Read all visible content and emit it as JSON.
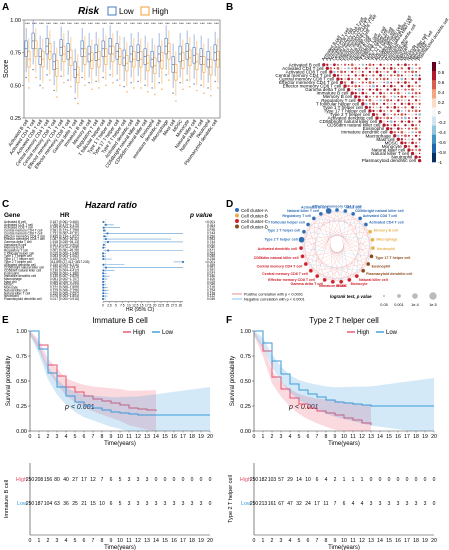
{
  "panel_letters": [
    "A",
    "B",
    "C",
    "D",
    "E",
    "F"
  ],
  "colors": {
    "low": "#4a78c6",
    "high": "#f0a23c",
    "km_high": "#e8506e",
    "km_low": "#3a9ad9",
    "pos": "#e57373",
    "neg": "#64b5f6"
  },
  "cells": [
    "Activated B cell",
    "Activated CD4 T cell",
    "Activated CD8 T cell",
    "Central memory CD4 T cell",
    "Central memory CD8 T cell",
    "Effector memeory CD4 T cell",
    "Effector memeory CD8 T cell",
    "Gamma delta T cell",
    "Immature B cell",
    "Memory B cell",
    "Regulatory T cell",
    "T follicular helper cell",
    "Type 1 T helper cell",
    "Type 17 T helper cell",
    "Type 2 T helper cell",
    "Activated dendritic cell",
    "CD56bright natural killer cell",
    "CD56dim natural killer cell",
    "Eosinophil",
    "Immature dendritic cell",
    "Macrophage",
    "Mast cell",
    "MDSC",
    "Monocyte",
    "Natural killer cell",
    "Natural killer T cell",
    "Neutrophil",
    "Plasmacytoid dendritic cell"
  ],
  "chart_data": [
    {
      "type": "box",
      "panel": "A",
      "title": "Risk",
      "legend": [
        "Low",
        "High"
      ],
      "ylabel": "Score",
      "ylim": [
        0.25,
        1.0
      ],
      "yticks": [
        "0.25",
        "0.50",
        "0.75",
        "1.00"
      ],
      "significance": [
        "***",
        "***",
        "***",
        "***",
        "***",
        "***",
        "***",
        "***",
        "***",
        "***",
        "***",
        "***",
        "***",
        "***",
        "**",
        "***",
        "***",
        "***",
        "***",
        "***",
        "***",
        "***",
        "***",
        "***",
        "***",
        "***",
        "***",
        "***"
      ],
      "series": [
        {
          "name": "Low",
          "median": [
            0.78,
            0.84,
            0.72,
            0.8,
            0.68,
            0.79,
            0.76,
            0.62,
            0.78,
            0.74,
            0.75,
            0.78,
            0.8,
            0.76,
            0.71,
            0.74,
            0.75,
            0.72,
            0.7,
            0.74,
            0.8,
            0.66,
            0.74,
            0.76,
            0.73,
            0.72,
            0.7,
            0.75
          ]
        },
        {
          "name": "High",
          "median": [
            0.7,
            0.78,
            0.7,
            0.76,
            0.63,
            0.74,
            0.71,
            0.58,
            0.72,
            0.69,
            0.7,
            0.72,
            0.74,
            0.72,
            0.67,
            0.7,
            0.7,
            0.67,
            0.65,
            0.69,
            0.76,
            0.6,
            0.69,
            0.71,
            0.68,
            0.66,
            0.64,
            0.7
          ]
        }
      ]
    },
    {
      "type": "heatmap",
      "panel": "B",
      "colorbar_ticks": [
        "1",
        "0.8",
        "0.6",
        "0.4",
        "0.2",
        "0",
        "-0.2",
        "-0.4",
        "-0.6",
        "-0.8",
        "-1"
      ]
    },
    {
      "type": "forest",
      "panel": "C",
      "title": "Hazard ratio",
      "headers": [
        "Gene",
        "HR",
        "p value"
      ],
      "xlabel": "HR (95% CI)",
      "xticks": [
        "0",
        "2.5",
        "5",
        "7.5",
        "10",
        "12.5",
        "15",
        "17.5",
        "20",
        "22.5",
        "25",
        "27.5",
        "30"
      ],
      "xmax": 31,
      "rows": [
        {
          "gene": "Activated B cell",
          "hr": "0.167 (0.061~0.460)",
          "p": "<0.001",
          "est": 0.167,
          "lo": 0.061,
          "hi": 0.46
        },
        {
          "gene": "Activated CD4 T cell",
          "hr": "1.056 (0.479~4.179)",
          "p": "0.311",
          "est": 1.056,
          "lo": 0.479,
          "hi": 4.179
        },
        {
          "gene": "Activated CD8 T cell",
          "hr": "0.249 (0.004~6.620)",
          "p": "0.252",
          "est": 0.249,
          "lo": 0.004,
          "hi": 6.62
        },
        {
          "gene": "Central memory CD4 T cell",
          "hr": "0.381 (0.123~1.196)",
          "p": "0.078",
          "est": 0.381,
          "lo": 0.123,
          "hi": 1.196
        },
        {
          "gene": "Central memory CD8 T cell",
          "hr": "1.731 (0.067~47.31)",
          "p": "0.744",
          "est": 1.731,
          "lo": 0.067,
          "hi": 31
        },
        {
          "gene": "Effector memeory CD4 T cell",
          "hr": "0.495 (0.134~1.827)",
          "p": "0.290",
          "est": 0.495,
          "lo": 0.134,
          "hi": 1.827
        },
        {
          "gene": "Effector memeory CD8 T cell",
          "hr": "1.087 (0.004~26.42)",
          "p": "0.953",
          "est": 1.087,
          "lo": 0.004,
          "hi": 26.42
        },
        {
          "gene": "Gamma delta T cell",
          "hr": "1.918 (0.039~94.13)",
          "p": "0.744",
          "est": 1.918,
          "lo": 0.039,
          "hi": 31
        },
        {
          "gene": "Immature B cell",
          "hr": "0.301 (0.019~0.904)",
          "p": "0.032",
          "est": 0.301,
          "lo": 0.019,
          "hi": 0.904
        },
        {
          "gene": "Memory B cell",
          "hr": "0.112 (0.014~0.908)",
          "p": "0.040",
          "est": 0.112,
          "lo": 0.014,
          "hi": 0.908
        },
        {
          "gene": "Regulatory T cell",
          "hr": "2.001 (0.081~49.26)",
          "p": "0.671",
          "est": 2.001,
          "lo": 0.081,
          "hi": 31
        },
        {
          "gene": "T follicular helper cell",
          "hr": "0.015 (0.000~1.048)",
          "p": "0.053",
          "est": 0.015,
          "lo": 0.0,
          "hi": 1.048
        },
        {
          "gene": "Type 1 T helper cell",
          "hr": "0.053 (0.003~1.061)",
          "p": "0.055",
          "est": 0.053,
          "lo": 0.003,
          "hi": 1.061
        },
        {
          "gene": "Type 17 T helper cell",
          "hr": "0.155 (0.007~3.427)",
          "p": "0.238",
          "est": 0.155,
          "lo": 0.007,
          "hi": 3.427
        },
        {
          "gene": "Type 2 T helper cell",
          "hr": "314.899 (27.413~3617.243)",
          "p": "<0.001",
          "est": 31,
          "lo": 27.413,
          "hi": 31
        },
        {
          "gene": "Activated dendritic cell",
          "hr": "0.155 (0.003~8.316)",
          "p": "0.359",
          "est": 0.155,
          "lo": 0.003,
          "hi": 8.316
        },
        {
          "gene": "CD56bright natural killer cell",
          "hr": "1.159 (0.010~133.4)",
          "p": "0.951",
          "est": 1.159,
          "lo": 0.01,
          "hi": 31
        },
        {
          "gene": "CD56dim natural killer cell",
          "hr": "0.136 (0.004~4.412)",
          "p": "0.261",
          "est": 0.136,
          "lo": 0.004,
          "hi": 4.412
        },
        {
          "gene": "Eosinophil",
          "hr": "0.056 (0.002~1.380)",
          "p": "0.077",
          "est": 0.056,
          "lo": 0.002,
          "hi": 1.38
        },
        {
          "gene": "Immature dendritic cell",
          "hr": "0.135 (0.007~2.629)",
          "p": "0.186",
          "est": 0.135,
          "lo": 0.007,
          "hi": 2.629
        },
        {
          "gene": "Macrophage",
          "hr": "0.061 (0.002~1.707)",
          "p": "0.100",
          "est": 0.061,
          "lo": 0.002,
          "hi": 1.707
        },
        {
          "gene": "Mast cell",
          "hr": "0.068 (0.006~0.760)",
          "p": "0.029",
          "est": 0.068,
          "lo": 0.006,
          "hi": 0.76
        },
        {
          "gene": "MDSC",
          "hr": "0.054 (0.003~0.933)",
          "p": "0.045",
          "est": 0.054,
          "lo": 0.003,
          "hi": 0.933
        },
        {
          "gene": "Monocyte",
          "hr": "0.122 (0.008~1.809)",
          "p": "0.126",
          "est": 0.122,
          "lo": 0.008,
          "hi": 1.809
        },
        {
          "gene": "Natural killer cell",
          "hr": "0.129 (0.008~2.156)",
          "p": "0.154",
          "est": 0.129,
          "lo": 0.008,
          "hi": 2.156
        },
        {
          "gene": "Natural killer T cell",
          "hr": "0.105 (0.005~2.057)",
          "p": "0.138",
          "est": 0.105,
          "lo": 0.005,
          "hi": 2.057
        },
        {
          "gene": "Neutrophil",
          "hr": "0.076 (0.003~1.804)",
          "p": "0.112",
          "est": 0.076,
          "lo": 0.003,
          "hi": 1.804
        },
        {
          "gene": "Plasmacytoid dendritic cell",
          "hr": "0.017 (0.000~0.916)",
          "p": "0.045",
          "est": 0.017,
          "lo": 0.0,
          "hi": 0.916
        }
      ]
    },
    {
      "type": "network",
      "panel": "D",
      "clusters": [
        {
          "name": "Cell cluster-A",
          "color": "#2f6db5"
        },
        {
          "name": "Cell cluster-B",
          "color": "#e8b04a"
        },
        {
          "name": "Cell cluster-C",
          "color": "#d0202a"
        },
        {
          "name": "Cell cluster-D",
          "color": "#8b4a1a"
        }
      ],
      "nodes": [
        {
          "label": "Effector memeory CD4 T cell",
          "cluster": 0,
          "size": 2
        },
        {
          "label": "Mast cell",
          "cluster": 0,
          "size": 2
        },
        {
          "label": "CD56bright natural killer cell",
          "cluster": 0,
          "size": 2
        },
        {
          "label": "Activated CD8 T cell",
          "cluster": 0,
          "size": 2
        },
        {
          "label": "Activated CD4 T cell",
          "cluster": 0,
          "size": 2
        },
        {
          "label": "Memory B cell",
          "cluster": 1,
          "size": 2
        },
        {
          "label": "Macrophage",
          "cluster": 1,
          "size": 2
        },
        {
          "label": "Neutrophil",
          "cluster": 1,
          "size": 2
        },
        {
          "label": "Type 17 T helper cell",
          "cluster": 3,
          "size": 2
        },
        {
          "label": "Eosinophil",
          "cluster": 3,
          "size": 2
        },
        {
          "label": "Plasmacytoid dendritic cell",
          "cluster": 3,
          "size": 2
        },
        {
          "label": "Natural killer cell",
          "cluster": 2,
          "size": 2
        },
        {
          "label": "Monocyte",
          "cluster": 2,
          "size": 2
        },
        {
          "label": "MDSC",
          "cluster": 2,
          "size": 2
        },
        {
          "label": "Immature B cell",
          "cluster": 2,
          "size": 2
        },
        {
          "label": "Gamma delta T cell",
          "cluster": 2,
          "size": 2
        },
        {
          "label": "Effector memory CD8 T cell",
          "cluster": 2,
          "size": 2
        },
        {
          "label": "Central memory CD8 T cell",
          "cluster": 2,
          "size": 2
        },
        {
          "label": "Central memory CD4 T cell",
          "cluster": 2,
          "size": 2
        },
        {
          "label": "CD56dim natural killer cell",
          "cluster": 2,
          "size": 2
        },
        {
          "label": "Activated dendritic cell",
          "cluster": 2,
          "size": 2
        },
        {
          "label": "Type 2 T helper cell",
          "cluster": 0,
          "size": 3
        },
        {
          "label": "Type 1 T helper cell",
          "cluster": 0,
          "size": 2
        },
        {
          "label": "T follicular helper cell",
          "cluster": 0,
          "size": 2
        },
        {
          "label": "Regulatory T cell",
          "cluster": 0,
          "size": 2
        },
        {
          "label": "Natural killer T cell",
          "cluster": 0,
          "size": 2
        },
        {
          "label": "Activated B cell",
          "cluster": 0,
          "size": 3
        }
      ],
      "legend_pos": "Positive correlation with p < 0.0001",
      "legend_neg": "Negative correlation with p < 0.0001",
      "logrank": "logrank test, p value",
      "size_labels": [
        "0.05",
        "0.001",
        "1e-4",
        "1e-5"
      ]
    },
    {
      "type": "line",
      "panel": "E",
      "title": "Immature B cell",
      "legend": [
        "High",
        "Low"
      ],
      "ylabel": "Survival probability",
      "xlabel": "Time(years)",
      "pvalue": "p < 0.001",
      "yticks": [
        "0.00",
        "0.25",
        "0.50",
        "0.75",
        "1.00"
      ],
      "xticks": [
        "0",
        "1",
        "2",
        "3",
        "4",
        "5",
        "6",
        "7",
        "8",
        "9",
        "10",
        "11",
        "12",
        "13",
        "14",
        "15",
        "16",
        "17",
        "18",
        "19",
        "20"
      ],
      "series": [
        {
          "name": "High",
          "x": [
            0,
            1,
            2,
            3,
            4,
            5,
            6,
            7,
            8,
            9,
            10,
            11,
            12,
            13,
            14
          ],
          "y": [
            1.0,
            0.86,
            0.66,
            0.55,
            0.44,
            0.39,
            0.35,
            0.32,
            0.3,
            0.28,
            0.26,
            0.23,
            0.22,
            0.21,
            0.2
          ]
        },
        {
          "name": "Low",
          "x": [
            0,
            1,
            2,
            3,
            4,
            5,
            6,
            7,
            8,
            9,
            10,
            11,
            12,
            13,
            14,
            15,
            16,
            17,
            18,
            19,
            20
          ],
          "y": [
            1.0,
            0.82,
            0.58,
            0.44,
            0.35,
            0.29,
            0.25,
            0.23,
            0.21,
            0.19,
            0.18,
            0.17,
            0.16,
            0.16,
            0.16,
            0.16,
            0.16,
            0.16,
            0.16,
            0.16,
            0.16
          ]
        }
      ],
      "risk_table": {
        "ylabel": "Immature B cell",
        "xlabel": "Time(years)",
        "rows": [
          {
            "name": "High",
            "values": [
              "250",
              "208",
              "156",
              "80",
              "40",
              "27",
              "17",
              "12",
              "7",
              "6",
              "5",
              "3",
              "3",
              "3",
              "0",
              "0",
              "0",
              "0",
              "0",
              "0",
              "0"
            ]
          },
          {
            "name": "Low",
            "values": [
              "250",
              "187",
              "104",
              "63",
              "36",
              "25",
              "21",
              "15",
              "10",
              "6",
              "5",
              "3",
              "3",
              "3",
              "3",
              "3",
              "3",
              "3",
              "3",
              "3",
              "0"
            ]
          }
        ]
      }
    },
    {
      "type": "line",
      "panel": "F",
      "title": "Type 2 T helper cell",
      "legend": [
        "High",
        "Low"
      ],
      "ylabel": "Survival probability",
      "xlabel": "Time(years)",
      "pvalue": "p < 0.001",
      "yticks": [
        "0.00",
        "0.25",
        "0.50",
        "0.75",
        "1.00"
      ],
      "xticks": [
        "0",
        "1",
        "2",
        "3",
        "4",
        "5",
        "6",
        "7",
        "8",
        "9",
        "10",
        "11",
        "12",
        "13",
        "14",
        "15",
        "16",
        "17",
        "18",
        "19",
        "20"
      ],
      "series": [
        {
          "name": "High",
          "x": [
            0,
            1,
            2,
            3,
            4,
            5,
            6,
            7,
            8,
            9,
            10,
            11,
            12,
            13
          ],
          "y": [
            1.0,
            0.8,
            0.54,
            0.42,
            0.33,
            0.27,
            0.23,
            0.2,
            0.18,
            0.16,
            0.13,
            0.11,
            0.08,
            0.06
          ]
        },
        {
          "name": "Low",
          "x": [
            0,
            1,
            2,
            3,
            4,
            5,
            6,
            7,
            8,
            9,
            10,
            11,
            12,
            13,
            14,
            15,
            16,
            17,
            18,
            19,
            20
          ],
          "y": [
            1.0,
            0.88,
            0.7,
            0.57,
            0.47,
            0.41,
            0.37,
            0.34,
            0.31,
            0.29,
            0.28,
            0.27,
            0.26,
            0.25,
            0.25,
            0.25,
            0.25,
            0.25,
            0.25,
            0.25,
            0.25
          ]
        }
      ],
      "risk_table": {
        "ylabel": "Type 2 T helper cell",
        "xlabel": "Time(years)",
        "rows": [
          {
            "name": "High",
            "values": [
              "250",
              "182",
              "103",
              "57",
              "29",
              "14",
              "10",
              "6",
              "4",
              "2",
              "1",
              "1",
              "1",
              "0",
              "0",
              "0",
              "0",
              "0",
              "0",
              "0",
              "0"
            ]
          },
          {
            "name": "Low",
            "values": [
              "250",
              "213",
              "161",
              "67",
              "47",
              "32",
              "24",
              "17",
              "11",
              "7",
              "6",
              "4",
              "4",
              "3",
              "3",
              "3",
              "3",
              "3",
              "3",
              "3",
              "0"
            ]
          }
        ]
      }
    }
  ]
}
